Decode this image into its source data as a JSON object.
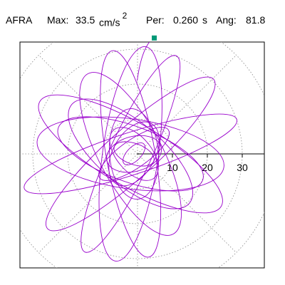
{
  "header": {
    "station": "AFRA",
    "max_label": "Max:",
    "max_value": "33.5",
    "max_unit": "cm/s",
    "max_unit_power": "2",
    "per_label": "Per:",
    "per_value": "0.260",
    "per_unit": "s",
    "ang_label": "Ang:",
    "ang_value": "81.8"
  },
  "chart_data": {
    "type": "polar-particle-motion",
    "radial_ticks": [
      "10",
      "20",
      "30"
    ],
    "radial_tick_values": [
      10,
      20,
      30
    ],
    "rings": [
      10,
      20,
      30,
      40
    ],
    "spokes_deg": [
      0,
      45,
      90,
      135,
      180,
      225,
      270,
      315
    ],
    "grid": "dotted",
    "axis_line": "positive x from origin",
    "max_amplitude": 33.5,
    "angle_deg": 81.8,
    "trace_color": "#9900cc",
    "marker_color": "#009977",
    "trace_ellipses": [
      {
        "cx": -2,
        "cy": 0,
        "a": 32,
        "b": 6,
        "rot": 18
      },
      {
        "cx": -2,
        "cy": 0,
        "a": 32,
        "b": 7,
        "rot": 42
      },
      {
        "cx": -2,
        "cy": 0,
        "a": 31,
        "b": 6,
        "rot": 65
      },
      {
        "cx": -2,
        "cy": 0,
        "a": 31,
        "b": 8,
        "rot": 82
      },
      {
        "cx": -2,
        "cy": 0,
        "a": 30,
        "b": 7,
        "rot": 100
      },
      {
        "cx": -2,
        "cy": 0,
        "a": 26,
        "b": 9,
        "rot": 118
      },
      {
        "cx": -2,
        "cy": 0,
        "a": 22,
        "b": 9,
        "rot": 140
      },
      {
        "cx": -2,
        "cy": 0,
        "a": 22,
        "b": 8,
        "rot": 160
      },
      {
        "cx": -2,
        "cy": 0,
        "a": 30,
        "b": 9,
        "rot": -30
      },
      {
        "cx": -2,
        "cy": 0,
        "a": 27,
        "b": 10,
        "rot": -8
      },
      {
        "cx": -1,
        "cy": 0,
        "a": 8,
        "b": 5,
        "rot": 15
      },
      {
        "cx": -1,
        "cy": 0,
        "a": 12,
        "b": 4,
        "rot": 35
      },
      {
        "cx": -1,
        "cy": 0,
        "a": 10,
        "b": 6,
        "rot": 60
      },
      {
        "cx": -1,
        "cy": 0,
        "a": 13,
        "b": 7,
        "rot": 95
      },
      {
        "cx": -1,
        "cy": 0,
        "a": 9,
        "b": 5,
        "rot": 130
      },
      {
        "cx": -1,
        "cy": 0,
        "a": 6,
        "b": 3,
        "rot": 160
      },
      {
        "cx": -1,
        "cy": 0,
        "a": 4,
        "b": 2,
        "rot": 45
      }
    ],
    "marker": {
      "x": 4.8,
      "y": 33.2
    }
  }
}
